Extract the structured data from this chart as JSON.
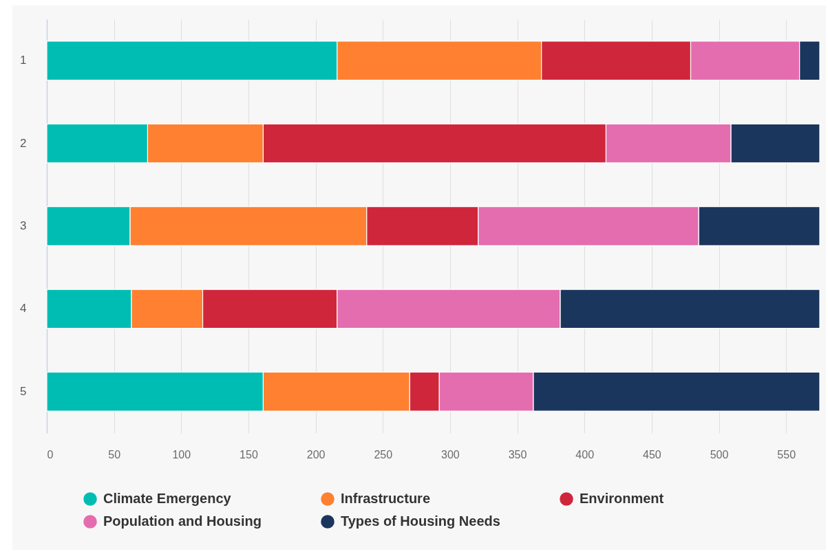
{
  "chart_data": {
    "type": "bar",
    "orientation": "horizontal",
    "stacked": true,
    "categories": [
      "1",
      "2",
      "3",
      "4",
      "5"
    ],
    "series": [
      {
        "name": "Climate Emergency",
        "color": "#00bdb3",
        "values": [
          216,
          75,
          62,
          63,
          161
        ]
      },
      {
        "name": "Infrastructure",
        "color": "#fe8030",
        "values": [
          152,
          86,
          176,
          53,
          109
        ]
      },
      {
        "name": "Environment",
        "color": "#d0263c",
        "values": [
          111,
          255,
          83,
          100,
          22
        ]
      },
      {
        "name": "Population and Housing",
        "color": "#e46daf",
        "values": [
          81,
          93,
          164,
          166,
          70
        ]
      },
      {
        "name": "Types of Housing Needs",
        "color": "#1b365d",
        "values": [
          15,
          66,
          90,
          193,
          213
        ]
      }
    ],
    "xlim": [
      0,
      575
    ],
    "xticks": [
      0,
      50,
      100,
      150,
      200,
      250,
      300,
      350,
      400,
      450,
      500,
      550
    ],
    "grid": "x",
    "legend": "bottom"
  }
}
